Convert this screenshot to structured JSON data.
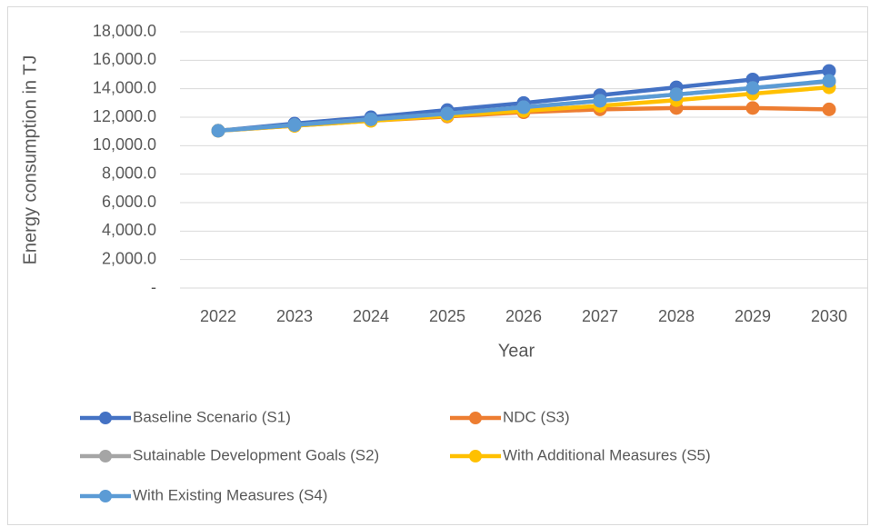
{
  "chart_data": {
    "type": "line",
    "x_label": "Year",
    "y_label": "Energy consumption in TJ",
    "categories": [
      "2022",
      "2023",
      "2024",
      "2025",
      "2026",
      "2027",
      "2028",
      "2029",
      "2030"
    ],
    "series": [
      {
        "name": "Baseline Scenario (S1)",
        "color": "#4472c4",
        "values": [
          11050,
          11550,
          12000,
          12500,
          13000,
          13550,
          14100,
          14650,
          15250
        ]
      },
      {
        "name": "NDC (S3)",
        "color": "#ed7d31",
        "values": [
          11050,
          11400,
          11750,
          12050,
          12350,
          12550,
          12650,
          12650,
          12550
        ]
      },
      {
        "name": "Sutainable Development Goals (S2)",
        "color": "#a5a5a5",
        "values": [
          11050,
          11450,
          11850,
          12250,
          12700,
          13150,
          13600,
          14050,
          14500
        ]
      },
      {
        "name": "With Additional Measures (S5)",
        "color": "#ffc000",
        "values": [
          11050,
          11400,
          11750,
          12100,
          12450,
          12800,
          13200,
          13650,
          14100
        ]
      },
      {
        "name": "With Existing Measures (S4)",
        "color": "#5b9bd5",
        "values": [
          11050,
          11450,
          11850,
          12250,
          12700,
          13150,
          13600,
          14050,
          14550
        ]
      }
    ],
    "ylim": [
      0,
      18000
    ],
    "yticks": [
      {
        "value": 0,
        "label": "-"
      },
      {
        "value": 2000,
        "label": "2,000.0"
      },
      {
        "value": 4000,
        "label": "4,000.0"
      },
      {
        "value": 6000,
        "label": "6,000.0"
      },
      {
        "value": 8000,
        "label": "8,000.0"
      },
      {
        "value": 10000,
        "label": "10,000.0"
      },
      {
        "value": 12000,
        "label": "12,000.0"
      },
      {
        "value": 14000,
        "label": "14,000.0"
      },
      {
        "value": 16000,
        "label": "16,000.0"
      },
      {
        "value": 18000,
        "label": "18,000.0"
      }
    ],
    "grid": true,
    "legend": "bottom"
  }
}
